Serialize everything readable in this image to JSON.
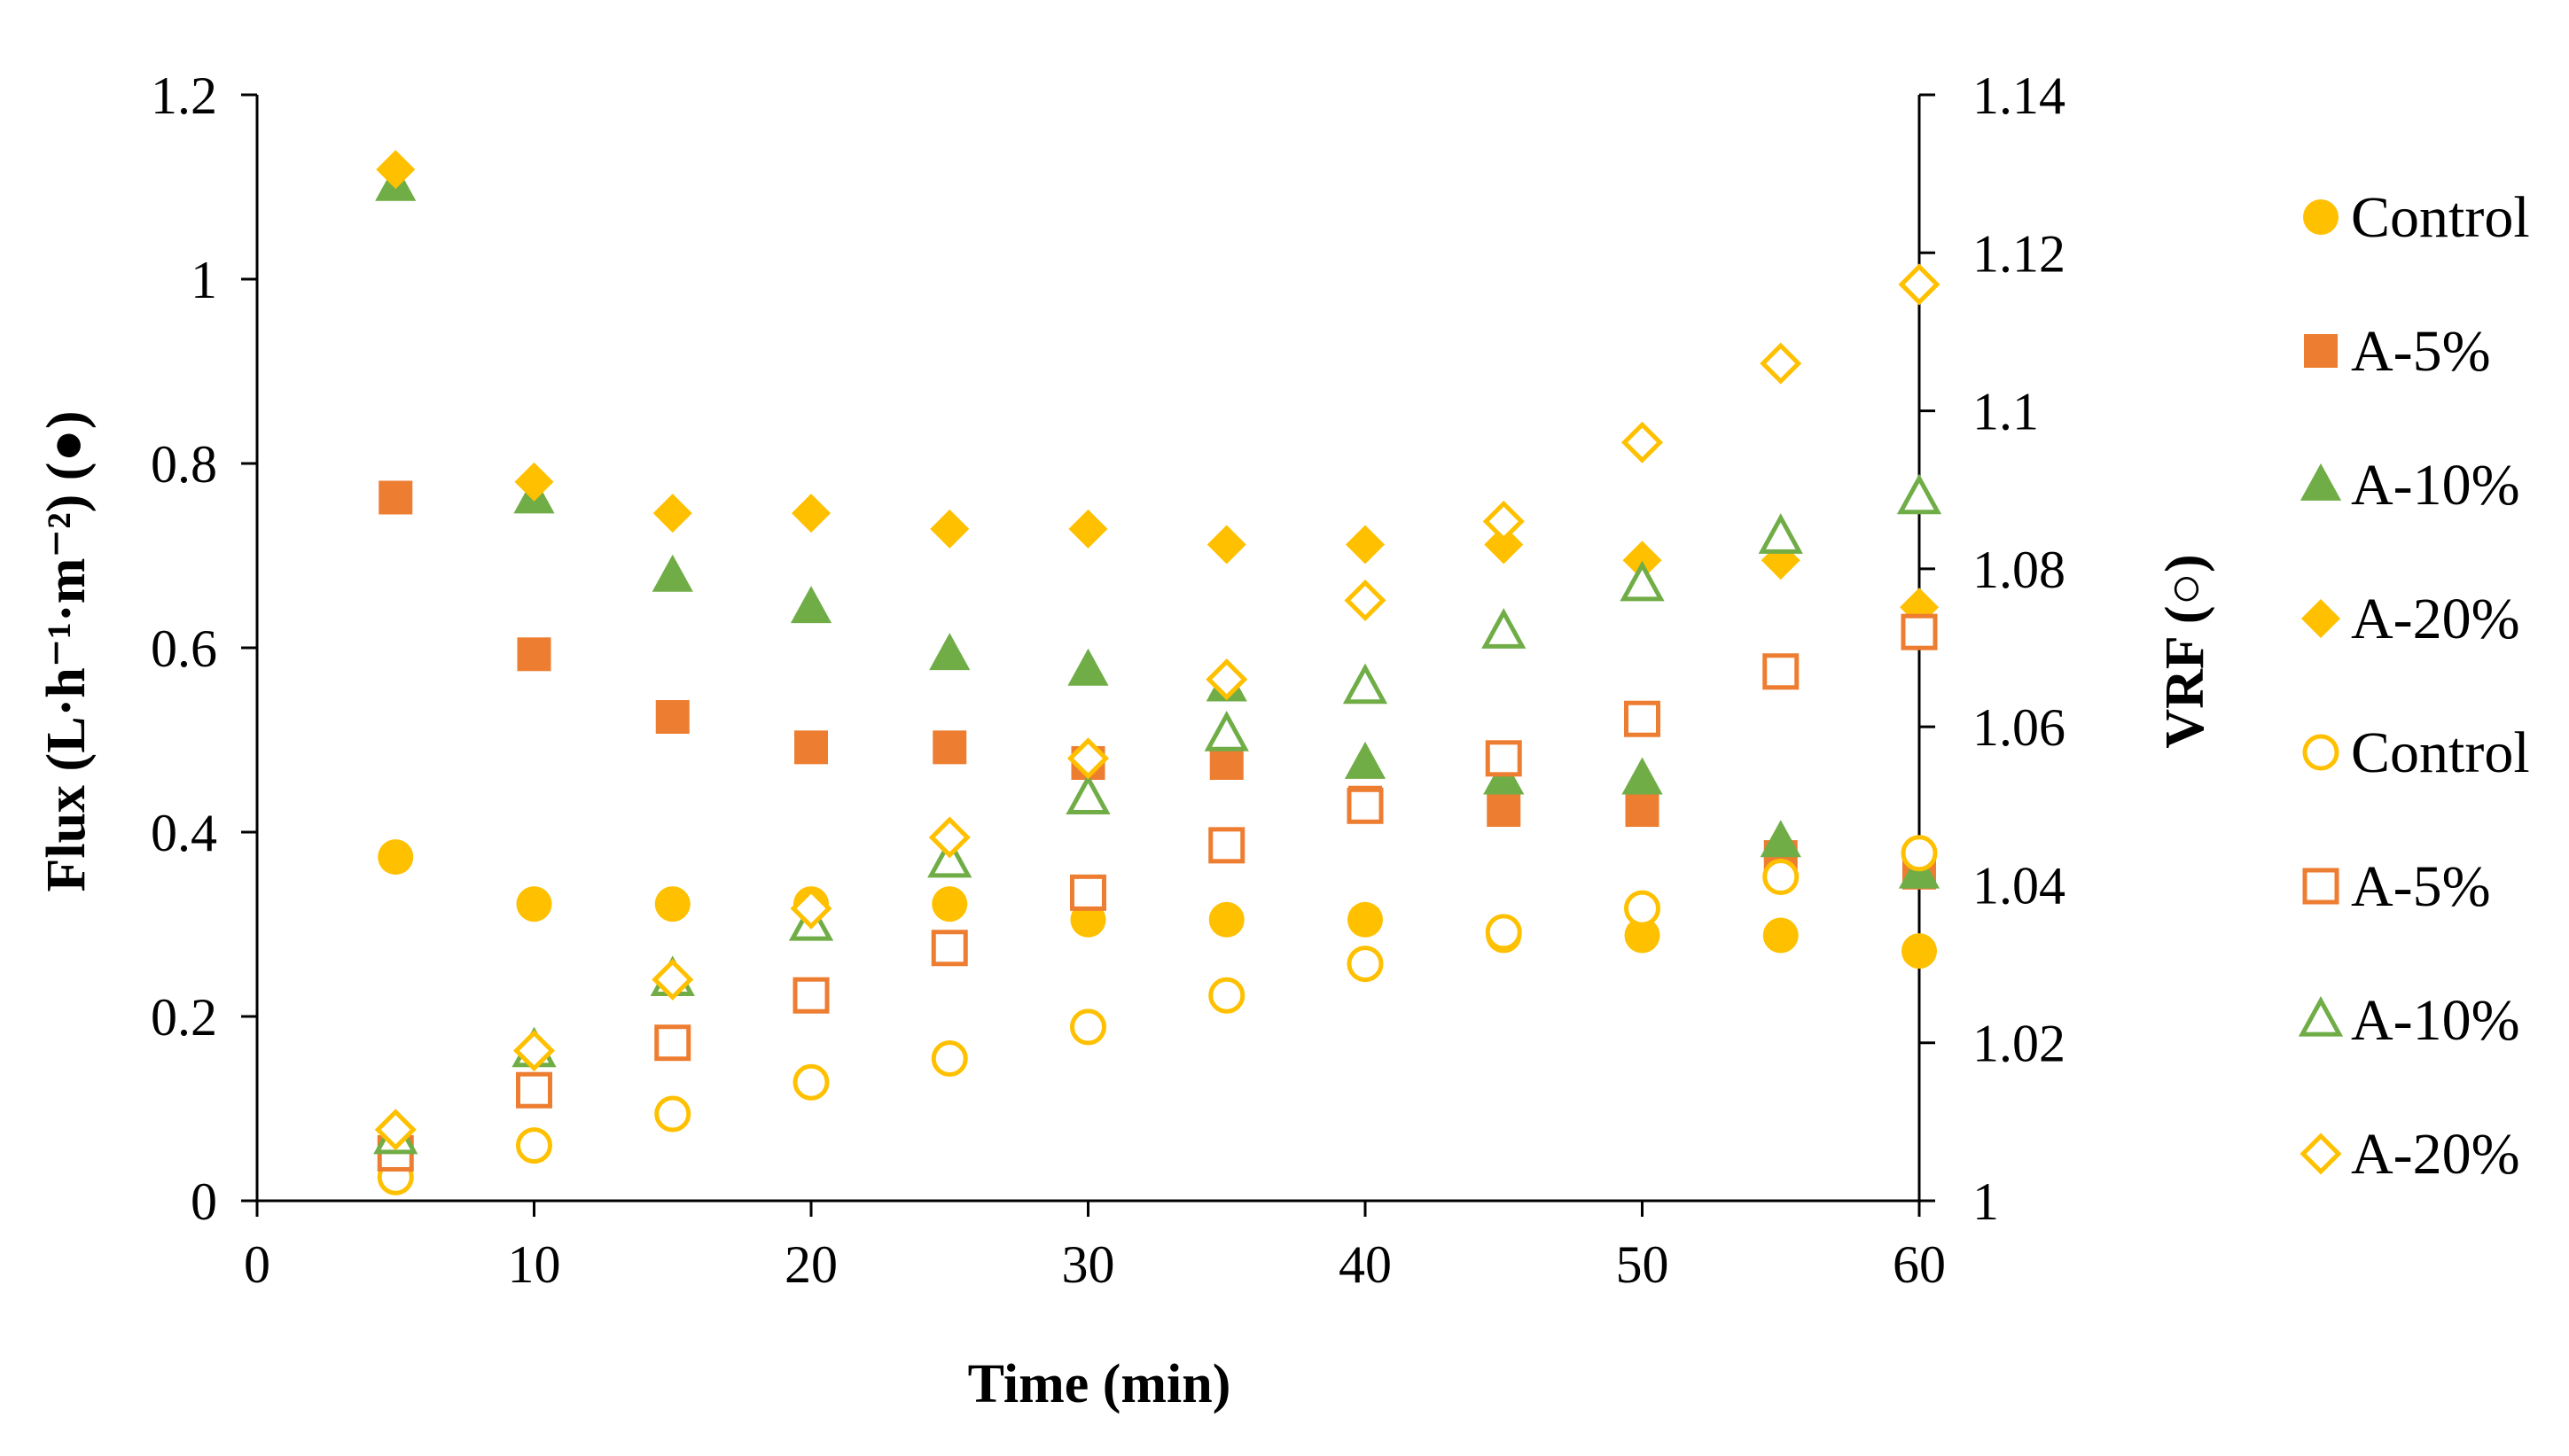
{
  "chart_data": {
    "type": "scatter",
    "x_axis": {
      "label": "Time (min)",
      "range": [
        0,
        60
      ],
      "ticks": [
        0,
        10,
        20,
        30,
        40,
        50,
        60
      ],
      "tick_labels": [
        "0",
        "10",
        "20",
        "30",
        "40",
        "50",
        "60"
      ]
    },
    "y_axis_left": {
      "label": "Flux (L·h⁻¹·m⁻²) (●)",
      "range": [
        0,
        1.2
      ],
      "ticks": [
        0,
        0.2,
        0.4,
        0.6,
        0.8,
        1.0,
        1.2
      ],
      "tick_labels": [
        "0",
        "0.2",
        "0.4",
        "0.6",
        "0.8",
        "1",
        "1.2"
      ]
    },
    "y_axis_right": {
      "label": "VRF (○)",
      "range": [
        1,
        1.14
      ],
      "ticks": [
        1,
        1.02,
        1.04,
        1.06,
        1.08,
        1.1,
        1.12,
        1.14
      ],
      "tick_labels": [
        "1",
        "1.02",
        "1.04",
        "1.06",
        "1.08",
        "1.1",
        "1.12",
        "1.14"
      ]
    },
    "grid": false,
    "legend_position": "right",
    "x": [
      5,
      10,
      15,
      20,
      25,
      30,
      35,
      40,
      45,
      50,
      55,
      60
    ],
    "series": [
      {
        "name": "Control",
        "axis": "left",
        "marker": "circle",
        "filled": true,
        "color": "#FFC000",
        "values": [
          0.373,
          0.322,
          0.322,
          0.322,
          0.322,
          0.305,
          0.305,
          0.305,
          0.288,
          0.288,
          0.288,
          0.271
        ]
      },
      {
        "name": "A-5%",
        "axis": "left",
        "marker": "square",
        "filled": true,
        "color": "#ED7D31",
        "values": [
          0.763,
          0.593,
          0.525,
          0.492,
          0.492,
          0.475,
          0.475,
          0.432,
          0.424,
          0.424,
          0.373,
          0.356
        ]
      },
      {
        "name": "A-10%",
        "axis": "left",
        "marker": "triangle",
        "filled": true,
        "color": "#70AD47",
        "values": [
          1.102,
          0.763,
          0.678,
          0.644,
          0.593,
          0.576,
          0.559,
          0.475,
          0.458,
          0.458,
          0.39,
          0.356
        ]
      },
      {
        "name": "A-20%",
        "axis": "left",
        "marker": "diamond",
        "filled": true,
        "color": "#FFC000",
        "values": [
          1.119,
          0.78,
          0.746,
          0.746,
          0.729,
          0.729,
          0.712,
          0.712,
          0.712,
          0.695,
          0.695,
          0.644
        ]
      },
      {
        "name": "Control",
        "axis": "right",
        "marker": "circle",
        "filled": false,
        "color": "#FFC000",
        "values": [
          1.003,
          1.007,
          1.011,
          1.015,
          1.018,
          1.022,
          1.026,
          1.03,
          1.034,
          1.037,
          1.041,
          1.044
        ]
      },
      {
        "name": "A-5%",
        "axis": "right",
        "marker": "square",
        "filled": false,
        "color": "#ED7D31",
        "values": [
          1.006,
          1.014,
          1.02,
          1.026,
          1.032,
          1.039,
          1.045,
          1.05,
          1.056,
          1.061,
          1.067,
          1.072
        ]
      },
      {
        "name": "A-10%",
        "axis": "right",
        "marker": "triangle",
        "filled": false,
        "color": "#70AD47",
        "values": [
          1.008,
          1.019,
          1.028,
          1.035,
          1.043,
          1.051,
          1.059,
          1.065,
          1.072,
          1.078,
          1.084,
          1.089
        ]
      },
      {
        "name": "A-20%",
        "axis": "right",
        "marker": "diamond",
        "filled": false,
        "color": "#FFC000",
        "values": [
          1.009,
          1.019,
          1.028,
          1.037,
          1.046,
          1.056,
          1.066,
          1.076,
          1.086,
          1.096,
          1.106,
          1.116
        ]
      }
    ]
  }
}
